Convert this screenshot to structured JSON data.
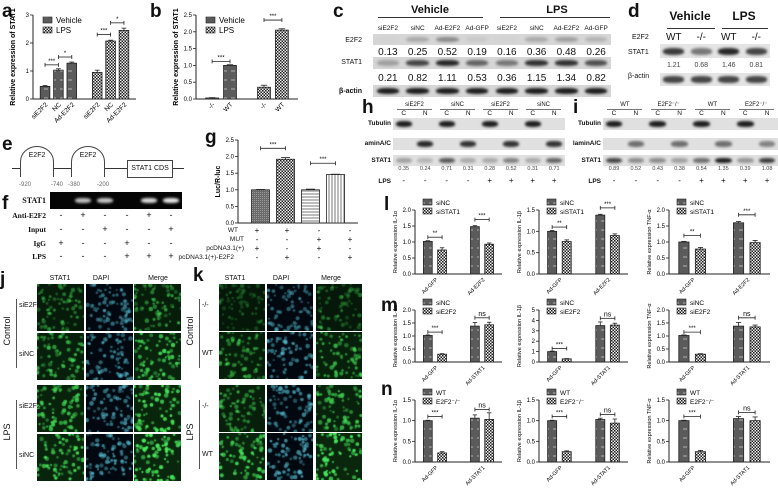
{
  "panel_labels": {
    "a": "a",
    "b": "b",
    "c": "c",
    "d": "d",
    "e": "e",
    "f": "f",
    "g": "g",
    "h": "h",
    "i": "i",
    "j": "j",
    "k": "k",
    "l": "l",
    "m": "m",
    "n": "n"
  },
  "c": {
    "groups": [
      "Vehicle",
      "LPS"
    ],
    "lanes": [
      "siE2F2",
      "siNC",
      "Ad-E2F2",
      "Ad-GFP",
      "siE2F2",
      "siNC",
      "Ad-E2F2",
      "Ad-GFP"
    ],
    "rows": [
      "E2F2",
      "STAT1",
      "β-actin"
    ],
    "e2f2_values": [
      "0.13",
      "0.25",
      "0.52",
      "0.19",
      "0.16",
      "0.36",
      "0.48",
      "0.26"
    ],
    "stat1_values": [
      "0.21",
      "0.82",
      "1.11",
      "0.53",
      "0.36",
      "1.15",
      "1.34",
      "0.82"
    ]
  },
  "d": {
    "groups": [
      "Vehicle",
      "LPS"
    ],
    "genotype_label": "E2F2",
    "lanes": [
      "WT",
      "-/-",
      "WT",
      "-/-"
    ],
    "rows": [
      "STAT1",
      "β-actin"
    ],
    "stat1_values": [
      "1.21",
      "0.68",
      "1.46",
      "0.81"
    ]
  },
  "h": {
    "groups": [
      "siE2F2",
      "siNC",
      "siE2F2",
      "siNC"
    ],
    "fractions": [
      "C",
      "N",
      "C",
      "N",
      "C",
      "N",
      "C",
      "N"
    ],
    "rows": [
      "Tubulin",
      "aminA/C",
      "STAT1"
    ],
    "stat1_values": [
      "0.35",
      "0.24",
      "0.71",
      "0.31",
      "0.28",
      "0.52",
      "0.31",
      "0.71"
    ],
    "lps_label": "LPS",
    "lps": [
      "-",
      "-",
      "-",
      "-",
      "+",
      "+",
      "+",
      "+"
    ]
  },
  "i": {
    "groups": [
      "WT",
      "E2F2⁻/⁻",
      "WT",
      "E2F2⁻/⁻"
    ],
    "fractions": [
      "C",
      "N",
      "C",
      "N",
      "C",
      "N",
      "C",
      "N"
    ],
    "rows": [
      "Tubulin",
      "laminA/C",
      "STAT1"
    ],
    "stat1_values": [
      "0.89",
      "0.52",
      "0.43",
      "0.38",
      "0.54",
      "1.35",
      "0.39",
      "1.08"
    ],
    "lps_label": "LPS",
    "lps": [
      "-",
      "-",
      "-",
      "-",
      "+",
      "+",
      "+",
      "+"
    ]
  },
  "e": {
    "sites": [
      "E2F2",
      "E2F2"
    ],
    "cds_label": "STAT1 CDS",
    "positions": [
      "-920",
      "-740",
      "-380",
      "-200"
    ]
  },
  "f": {
    "band_label": "STAT1",
    "rows": [
      {
        "label": "Anti-E2F2",
        "values": [
          "-",
          "+",
          "-",
          "-",
          "+",
          "-"
        ]
      },
      {
        "label": "Input",
        "values": [
          "-",
          "-",
          "+",
          "-",
          "-",
          "+"
        ]
      },
      {
        "label": "IgG",
        "values": [
          "+",
          "-",
          "-",
          "+",
          "-",
          "-"
        ]
      },
      {
        "label": "LPS",
        "values": [
          "-",
          "-",
          "-",
          "+",
          "+",
          "+"
        ]
      }
    ]
  },
  "g_table": {
    "rows": [
      {
        "label": "WT",
        "values": [
          "+",
          "+",
          "-",
          "-"
        ]
      },
      {
        "label": "MUT",
        "values": [
          "-",
          "-",
          "+",
          "+"
        ]
      },
      {
        "label": "pcDNA3.1(+)",
        "values": [
          "+",
          "-",
          "+",
          "-"
        ]
      },
      {
        "label": "pcDNA3.1(+)-E2F2",
        "values": [
          "-",
          "+",
          "-",
          "+"
        ]
      }
    ]
  },
  "j": {
    "columns": [
      "STAT1",
      "DAPI",
      "Merge"
    ],
    "conditions": [
      "Control",
      "LPS"
    ],
    "rows": [
      "siE2F2",
      "siNC",
      "siE2F2",
      "siNC"
    ]
  },
  "k": {
    "columns": [
      "STAT1",
      "DAPI",
      "Merge"
    ],
    "conditions": [
      "Control",
      "LPS"
    ],
    "rows": [
      "-/-",
      "WT",
      "-/-",
      "WT"
    ]
  },
  "colors": {
    "bar_dark": "#5b5b5b",
    "checker": "#1a1a1a",
    "stat1_fluor": "#2fd24a",
    "dapi_fluor": "#3fb8c8"
  },
  "chart_data": [
    {
      "panel": "a",
      "type": "bar",
      "ylabel": "Relative expression of STAT1",
      "ylim": [
        0,
        3
      ],
      "yticks": [
        "0",
        "1",
        "2",
        "3"
      ],
      "series": [
        {
          "name": "Vehicle",
          "pattern": "hatch"
        },
        {
          "name": "LPS",
          "pattern": "checker"
        }
      ],
      "categories": [
        "siE2F2",
        "NC",
        "Ad-E2F2",
        "siE2F2",
        "NC",
        "Ad-E2F2"
      ],
      "bars": [
        {
          "group": 0,
          "series": 0,
          "value": 0.45,
          "error": 0.03
        },
        {
          "group": 0,
          "series": 0,
          "value": 1.03,
          "error": 0.05
        },
        {
          "group": 0,
          "series": 0,
          "value": 1.28,
          "error": 0.04
        },
        {
          "group": 1,
          "series": 1,
          "value": 0.95,
          "error": 0.08
        },
        {
          "group": 1,
          "series": 1,
          "value": 2.07,
          "error": 0.03
        },
        {
          "group": 1,
          "series": 1,
          "value": 2.45,
          "error": 0.08
        }
      ],
      "significance": [
        {
          "from": 0,
          "to": 1,
          "label": "***",
          "at": 1.22
        },
        {
          "from": 1,
          "to": 2,
          "label": "*",
          "at": 1.5
        },
        {
          "from": 3,
          "to": 4,
          "label": "***",
          "at": 2.3
        },
        {
          "from": 4,
          "to": 5,
          "label": "*",
          "at": 2.72
        }
      ]
    },
    {
      "panel": "b",
      "type": "bar",
      "ylabel": "Relative expression of STAT1",
      "ylim": [
        0,
        2.5
      ],
      "yticks": [
        "0.0",
        "0.5",
        "1.0",
        "1.5",
        "2.0",
        "2.5"
      ],
      "series": [
        {
          "name": "Vehicle",
          "pattern": "hatch"
        },
        {
          "name": "LPS",
          "pattern": "checker"
        }
      ],
      "categories": [
        "-/-",
        "WT",
        "-/-",
        "WT"
      ],
      "bars": [
        {
          "group": 0,
          "series": 0,
          "value": 0.03,
          "error": 0.01
        },
        {
          "group": 0,
          "series": 0,
          "value": 1.0,
          "error": 0.02
        },
        {
          "group": 1,
          "series": 1,
          "value": 0.35,
          "error": 0.06
        },
        {
          "group": 1,
          "series": 1,
          "value": 2.05,
          "error": 0.04
        }
      ],
      "significance": [
        {
          "from": 0,
          "to": 1,
          "label": "***",
          "at": 1.12
        },
        {
          "from": 2,
          "to": 3,
          "label": "***",
          "at": 2.35
        }
      ]
    },
    {
      "panel": "g",
      "type": "bar",
      "ylabel": "Luc/R-luc",
      "ylim": [
        0,
        2.5
      ],
      "yticks": [
        "0.0",
        "0.5",
        "1.0",
        "1.5",
        "2.0",
        "2.5"
      ],
      "series": [],
      "categories": [],
      "bars": [
        {
          "group": 0,
          "pattern": "dense",
          "value": 1.0,
          "error": 0.01
        },
        {
          "group": 0,
          "pattern": "checker",
          "value": 1.92,
          "error": 0.05
        },
        {
          "group": 0,
          "pattern": "hlines",
          "value": 1.0,
          "error": 0.02
        },
        {
          "group": 0,
          "pattern": "vlines",
          "value": 1.46,
          "error": 0.01
        }
      ],
      "significance": [
        {
          "from": 0,
          "to": 1,
          "label": "***",
          "at": 2.25
        },
        {
          "from": 2,
          "to": 3,
          "label": "***",
          "at": 1.8
        }
      ]
    },
    {
      "panel": "l1",
      "type": "bar",
      "ylabel": "Relative expression IL-1α",
      "ylim": [
        0,
        2.0
      ],
      "yticks": [
        "0.0",
        "0.5",
        "1.0",
        "1.5",
        "2.0"
      ],
      "series": [
        {
          "name": "siNC",
          "pattern": "hatch"
        },
        {
          "name": "siSTAT1",
          "pattern": "checker"
        }
      ],
      "categories": [
        "Ad-GFP",
        "Ad-E2F2"
      ],
      "bars": [
        {
          "group": 0,
          "series": 0,
          "value": 1.02,
          "error": 0.02
        },
        {
          "group": 0,
          "series": 1,
          "value": 0.75,
          "error": 0.07
        },
        {
          "group": 1,
          "series": 0,
          "value": 1.48,
          "error": 0.03
        },
        {
          "group": 1,
          "series": 1,
          "value": 0.93,
          "error": 0.04
        }
      ],
      "significance": [
        {
          "from": 0,
          "to": 1,
          "label": "**",
          "at": 1.15
        },
        {
          "from": 2,
          "to": 3,
          "label": "***",
          "at": 1.7
        }
      ]
    },
    {
      "panel": "l2",
      "type": "bar",
      "ylabel": "Relative expression IL-1β",
      "ylim": [
        0,
        1.5
      ],
      "yticks": [
        "0.0",
        "0.5",
        "1.0",
        "1.5"
      ],
      "series": [
        {
          "name": "siNC",
          "pattern": "hatch"
        },
        {
          "name": "siSTAT1",
          "pattern": "checker"
        }
      ],
      "categories": [
        "Ad-GFP",
        "Ad-E2F2"
      ],
      "bars": [
        {
          "group": 0,
          "series": 0,
          "value": 1.0,
          "error": 0.02
        },
        {
          "group": 0,
          "series": 1,
          "value": 0.76,
          "error": 0.04
        },
        {
          "group": 1,
          "series": 0,
          "value": 1.38,
          "error": 0.02
        },
        {
          "group": 1,
          "series": 1,
          "value": 0.9,
          "error": 0.04
        }
      ],
      "significance": [
        {
          "from": 0,
          "to": 1,
          "label": "**",
          "at": 1.1
        },
        {
          "from": 2,
          "to": 3,
          "label": "***",
          "at": 1.55
        }
      ]
    },
    {
      "panel": "l3",
      "type": "bar",
      "ylabel": "Relative expression TNF-α",
      "ylim": [
        0,
        2.0
      ],
      "yticks": [
        "0.0",
        "0.5",
        "1.0",
        "1.5",
        "2.0"
      ],
      "series": [
        {
          "name": "siNC",
          "pattern": "hatch"
        },
        {
          "name": "siSTAT1",
          "pattern": "checker"
        }
      ],
      "categories": [
        "Ad-GFP",
        "Ad-E2F2"
      ],
      "bars": [
        {
          "group": 0,
          "series": 0,
          "value": 1.0,
          "error": 0.02
        },
        {
          "group": 0,
          "series": 1,
          "value": 0.78,
          "error": 0.05
        },
        {
          "group": 1,
          "series": 0,
          "value": 1.6,
          "error": 0.04
        },
        {
          "group": 1,
          "series": 1,
          "value": 0.98,
          "error": 0.07
        }
      ],
      "significance": [
        {
          "from": 0,
          "to": 1,
          "label": "**",
          "at": 1.2
        },
        {
          "from": 2,
          "to": 3,
          "label": "***",
          "at": 1.85
        }
      ]
    },
    {
      "panel": "m1",
      "type": "bar",
      "ylabel": "Relative expression IL-1α",
      "ylim": [
        0,
        2.0
      ],
      "yticks": [
        "0.0",
        "0.5",
        "1.0",
        "1.5",
        "2.0"
      ],
      "series": [
        {
          "name": "siNC",
          "pattern": "hatch"
        },
        {
          "name": "siE2F2",
          "pattern": "checker"
        }
      ],
      "categories": [
        "Ad-GFP",
        "Ad-STAT1"
      ],
      "bars": [
        {
          "group": 0,
          "series": 0,
          "value": 1.02,
          "error": 0.02
        },
        {
          "group": 0,
          "series": 1,
          "value": 0.3,
          "error": 0.02
        },
        {
          "group": 1,
          "series": 0,
          "value": 1.38,
          "error": 0.14
        },
        {
          "group": 1,
          "series": 1,
          "value": 1.43,
          "error": 0.1
        }
      ],
      "significance": [
        {
          "from": 0,
          "to": 1,
          "label": "***",
          "at": 1.15
        },
        {
          "from": 2,
          "to": 3,
          "label": "ns",
          "at": 1.7
        }
      ]
    },
    {
      "panel": "m2",
      "type": "bar",
      "ylabel": "Relative expression IL-1β",
      "ylim": [
        0,
        5
      ],
      "yticks": [
        "0",
        "1",
        "2",
        "3",
        "4",
        "5"
      ],
      "series": [
        {
          "name": "siNC",
          "pattern": "hatch"
        },
        {
          "name": "siE2F2",
          "pattern": "checker"
        }
      ],
      "categories": [
        "Ad-GFP",
        "Ad-STAT1"
      ],
      "bars": [
        {
          "group": 0,
          "series": 0,
          "value": 1.0,
          "error": 0.05
        },
        {
          "group": 0,
          "series": 1,
          "value": 0.3,
          "error": 0.03
        },
        {
          "group": 1,
          "series": 0,
          "value": 3.5,
          "error": 0.35
        },
        {
          "group": 1,
          "series": 1,
          "value": 3.55,
          "error": 0.18
        }
      ],
      "significance": [
        {
          "from": 0,
          "to": 1,
          "label": "***",
          "at": 1.3
        },
        {
          "from": 2,
          "to": 3,
          "label": "ns",
          "at": 4.2
        }
      ]
    },
    {
      "panel": "m3",
      "type": "bar",
      "ylabel": "Relative expression TNF-α",
      "ylim": [
        0,
        2.0
      ],
      "yticks": [
        "0.0",
        "0.5",
        "1.0",
        "1.5",
        "2.0"
      ],
      "series": [
        {
          "name": "siNC",
          "pattern": "hatch"
        },
        {
          "name": "siE2F2",
          "pattern": "checker"
        }
      ],
      "categories": [
        "Ad-GFP",
        "Ad-STAT1"
      ],
      "bars": [
        {
          "group": 0,
          "series": 0,
          "value": 1.02,
          "error": 0.02
        },
        {
          "group": 0,
          "series": 1,
          "value": 0.3,
          "error": 0.02
        },
        {
          "group": 1,
          "series": 0,
          "value": 1.38,
          "error": 0.14
        },
        {
          "group": 1,
          "series": 1,
          "value": 1.35,
          "error": 0.07
        }
      ],
      "significance": [
        {
          "from": 0,
          "to": 1,
          "label": "***",
          "at": 1.15
        },
        {
          "from": 2,
          "to": 3,
          "label": "ns",
          "at": 1.7
        }
      ]
    },
    {
      "panel": "n1",
      "type": "bar",
      "ylabel": "Relative expression IL-1α",
      "ylim": [
        0,
        1.5
      ],
      "yticks": [
        "0.0",
        "0.5",
        "1.0",
        "1.5"
      ],
      "series": [
        {
          "name": "WT",
          "pattern": "hatch"
        },
        {
          "name": "E2F2⁻/⁻",
          "pattern": "checker"
        }
      ],
      "categories": [
        "Ad-GFP",
        "Ad-STAT1"
      ],
      "bars": [
        {
          "group": 0,
          "series": 0,
          "value": 1.0,
          "error": 0.01
        },
        {
          "group": 0,
          "series": 1,
          "value": 0.22,
          "error": 0.03
        },
        {
          "group": 1,
          "series": 0,
          "value": 1.06,
          "error": 0.08
        },
        {
          "group": 1,
          "series": 1,
          "value": 1.03,
          "error": 0.16
        }
      ],
      "significance": [
        {
          "from": 0,
          "to": 1,
          "label": "***",
          "at": 1.1
        },
        {
          "from": 2,
          "to": 3,
          "label": "ns",
          "at": 1.27
        }
      ]
    },
    {
      "panel": "n2",
      "type": "bar",
      "ylabel": "Relative expression IL-1β",
      "ylim": [
        0,
        1.5
      ],
      "yticks": [
        "0.0",
        "0.5",
        "1.0",
        "1.5"
      ],
      "series": [
        {
          "name": "WT",
          "pattern": "hatch"
        },
        {
          "name": "E2F2⁻/⁻",
          "pattern": "checker"
        }
      ],
      "categories": [
        "Ad-GFP",
        "Ad-STAT1"
      ],
      "bars": [
        {
          "group": 0,
          "series": 0,
          "value": 1.0,
          "error": 0.01
        },
        {
          "group": 0,
          "series": 1,
          "value": 0.25,
          "error": 0.02
        },
        {
          "group": 1,
          "series": 0,
          "value": 1.03,
          "error": 0.03
        },
        {
          "group": 1,
          "series": 1,
          "value": 0.94,
          "error": 0.1
        }
      ],
      "significance": [
        {
          "from": 0,
          "to": 1,
          "label": "***",
          "at": 1.1
        },
        {
          "from": 2,
          "to": 3,
          "label": "ns",
          "at": 1.15
        }
      ]
    },
    {
      "panel": "n3",
      "type": "bar",
      "ylabel": "Relative expression TNF-α",
      "ylim": [
        0,
        1.5
      ],
      "yticks": [
        "0.0",
        "0.5",
        "1.0",
        "1.5"
      ],
      "series": [
        {
          "name": "WT",
          "pattern": "hatch"
        },
        {
          "name": "E2F2⁻/⁻",
          "pattern": "checker"
        }
      ],
      "categories": [
        "Ad-GFP",
        "Ad-STAT1"
      ],
      "bars": [
        {
          "group": 0,
          "series": 0,
          "value": 1.0,
          "error": 0.01
        },
        {
          "group": 0,
          "series": 1,
          "value": 0.25,
          "error": 0.03
        },
        {
          "group": 1,
          "series": 0,
          "value": 1.05,
          "error": 0.05
        },
        {
          "group": 1,
          "series": 1,
          "value": 1.0,
          "error": 0.09
        }
      ],
      "significance": [
        {
          "from": 0,
          "to": 1,
          "label": "***",
          "at": 1.1
        },
        {
          "from": 2,
          "to": 3,
          "label": "ns",
          "at": 1.2
        }
      ]
    }
  ]
}
